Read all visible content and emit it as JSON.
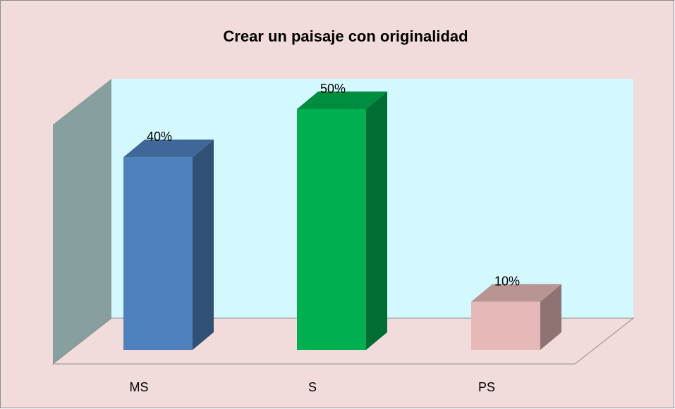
{
  "chart_data": {
    "type": "bar",
    "title": "Crear un paisaje con originalidad",
    "categories": [
      "MS",
      "S",
      "PS"
    ],
    "values": [
      40,
      50,
      10
    ],
    "value_labels": [
      "40%",
      "50%",
      "10%"
    ],
    "colors": [
      "#4f81bd",
      "#00b050",
      "#e6b9b8"
    ]
  }
}
